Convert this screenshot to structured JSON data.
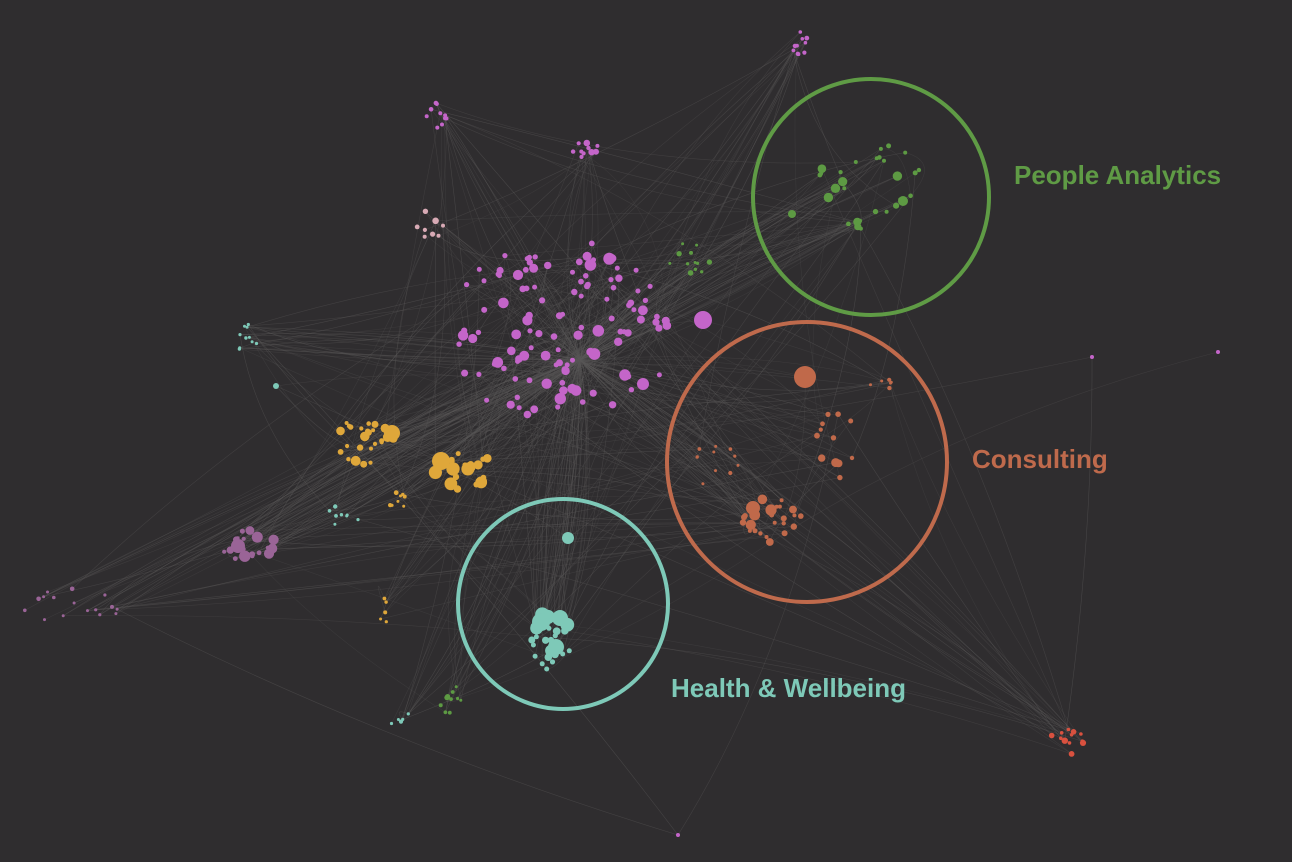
{
  "colors": {
    "background": "#2f2d2f",
    "edge": "#5a5858",
    "magenta": "#c465c9",
    "yellow": "#dfa73a",
    "teal": "#7ec9b8",
    "orange": "#c0694a",
    "green": "#5d9a43",
    "pink": "#d8aab5",
    "purple": "#9a6497",
    "red": "#d9513f"
  },
  "highlights": [
    {
      "id": "people-analytics",
      "label": "People Analytics",
      "color": "#5f9b45"
    },
    {
      "id": "consulting",
      "label": "Consulting",
      "color": "#bf6a4c"
    },
    {
      "id": "health-wellbeing",
      "label": "Health & Wellbeing",
      "color": "#7ec9b8"
    }
  ]
}
